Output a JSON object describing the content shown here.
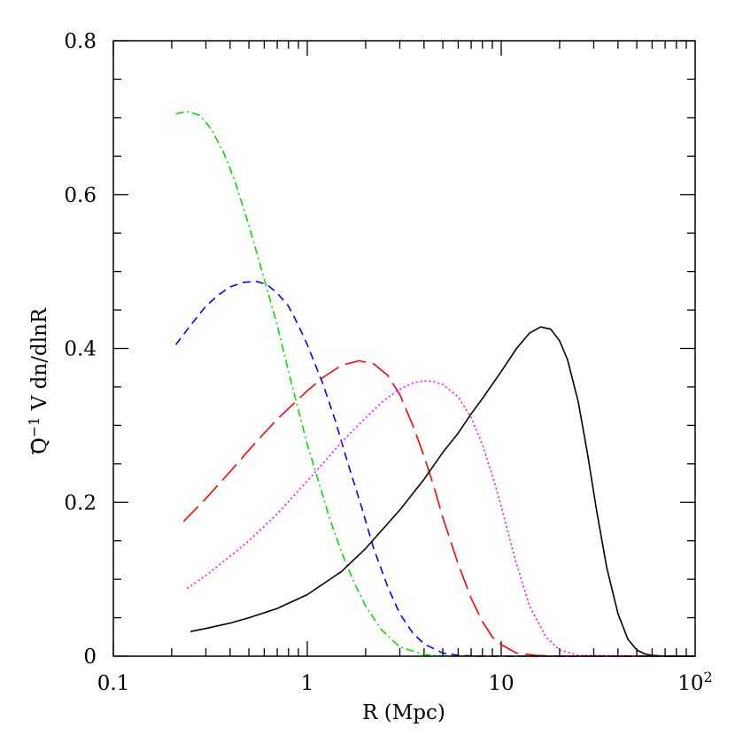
{
  "chart_data": {
    "type": "line",
    "xscale": "log",
    "xlabel": "R (Mpc)",
    "ylabel_main": "Q",
    "ylabel_sup": "−1",
    "ylabel_rest": " V dn/dlnR",
    "xlim": [
      0.1,
      100
    ],
    "ylim": [
      0,
      0.8
    ],
    "x_ticks": [
      {
        "value": 0.1,
        "label": "0.1"
      },
      {
        "value": 1,
        "label": "1"
      },
      {
        "value": 10,
        "label": "10"
      },
      {
        "value": 100,
        "label": "10",
        "sup": "2"
      }
    ],
    "y_ticks": [
      {
        "value": 0,
        "label": "0"
      },
      {
        "value": 0.2,
        "label": "0.2"
      },
      {
        "value": 0.4,
        "label": "0.4"
      },
      {
        "value": 0.6,
        "label": "0.6"
      },
      {
        "value": 0.8,
        "label": "0.8"
      }
    ],
    "series": [
      {
        "color": "#00dd00",
        "dash": "9 4 2 4",
        "x": [
          0.21,
          0.24,
          0.28,
          0.32,
          0.37,
          0.42,
          0.5,
          0.6,
          0.7,
          0.8,
          0.9,
          1.0,
          1.15,
          1.3,
          1.5,
          1.75,
          2.0,
          2.4,
          3.0,
          4.0,
          5.0,
          7.0,
          10,
          20,
          50,
          100
        ],
        "y": [
          0.705,
          0.708,
          0.703,
          0.685,
          0.655,
          0.62,
          0.56,
          0.49,
          0.43,
          0.37,
          0.32,
          0.275,
          0.225,
          0.18,
          0.135,
          0.095,
          0.065,
          0.035,
          0.012,
          0.002,
          0.0003,
          0,
          0,
          0,
          0,
          0
        ]
      },
      {
        "color": "#0000ff",
        "dash": "9 6",
        "x": [
          0.21,
          0.25,
          0.3,
          0.35,
          0.4,
          0.47,
          0.55,
          0.62,
          0.7,
          0.8,
          0.9,
          1.0,
          1.2,
          1.4,
          1.6,
          1.9,
          2.2,
          2.6,
          3.0,
          3.5,
          4.0,
          5.0,
          6.0,
          8.0,
          12,
          20,
          100
        ],
        "y": [
          0.405,
          0.43,
          0.455,
          0.47,
          0.48,
          0.486,
          0.487,
          0.483,
          0.472,
          0.455,
          0.43,
          0.405,
          0.355,
          0.305,
          0.255,
          0.195,
          0.14,
          0.09,
          0.055,
          0.03,
          0.016,
          0.004,
          0.001,
          0,
          0,
          0,
          0
        ]
      },
      {
        "color": "#ff0000",
        "dash": "24 8",
        "x": [
          0.23,
          0.3,
          0.4,
          0.5,
          0.6,
          0.7,
          0.8,
          1.0,
          1.2,
          1.5,
          1.85,
          2.2,
          2.6,
          3.0,
          3.5,
          4.0,
          4.5,
          5.0,
          6.0,
          7.0,
          8.0,
          9.0,
          10,
          12,
          15,
          20,
          100
        ],
        "y": [
          0.175,
          0.205,
          0.24,
          0.268,
          0.29,
          0.308,
          0.322,
          0.345,
          0.362,
          0.378,
          0.384,
          0.38,
          0.365,
          0.34,
          0.3,
          0.26,
          0.22,
          0.18,
          0.12,
          0.075,
          0.045,
          0.025,
          0.015,
          0.004,
          0.001,
          0,
          0
        ]
      },
      {
        "color": "#ff00ff",
        "dash": "2 3",
        "x": [
          0.24,
          0.3,
          0.4,
          0.5,
          0.7,
          0.9,
          1.2,
          1.5,
          2.0,
          2.5,
          3.0,
          3.5,
          4.0,
          4.5,
          5.0,
          6.0,
          7.0,
          8.0,
          9.0,
          10,
          11,
          12,
          14,
          17,
          20,
          25,
          100
        ],
        "y": [
          0.088,
          0.105,
          0.13,
          0.15,
          0.185,
          0.215,
          0.25,
          0.278,
          0.31,
          0.333,
          0.347,
          0.355,
          0.358,
          0.357,
          0.353,
          0.337,
          0.31,
          0.275,
          0.235,
          0.195,
          0.155,
          0.12,
          0.065,
          0.025,
          0.008,
          0.001,
          0
        ]
      },
      {
        "color": "#000000",
        "dash": "",
        "x": [
          0.25,
          0.3,
          0.4,
          0.5,
          0.7,
          1.0,
          1.5,
          2.0,
          3.0,
          4.0,
          5.0,
          6.0,
          7.0,
          8.0,
          10,
          12,
          14,
          16,
          18,
          20,
          22,
          25,
          28,
          31,
          35,
          40,
          45,
          50,
          55,
          60,
          70,
          100
        ],
        "y": [
          0.032,
          0.036,
          0.043,
          0.05,
          0.062,
          0.08,
          0.11,
          0.14,
          0.19,
          0.23,
          0.265,
          0.29,
          0.315,
          0.335,
          0.37,
          0.4,
          0.42,
          0.428,
          0.425,
          0.41,
          0.385,
          0.33,
          0.26,
          0.19,
          0.115,
          0.055,
          0.022,
          0.008,
          0.003,
          0.001,
          0,
          0
        ]
      }
    ]
  }
}
